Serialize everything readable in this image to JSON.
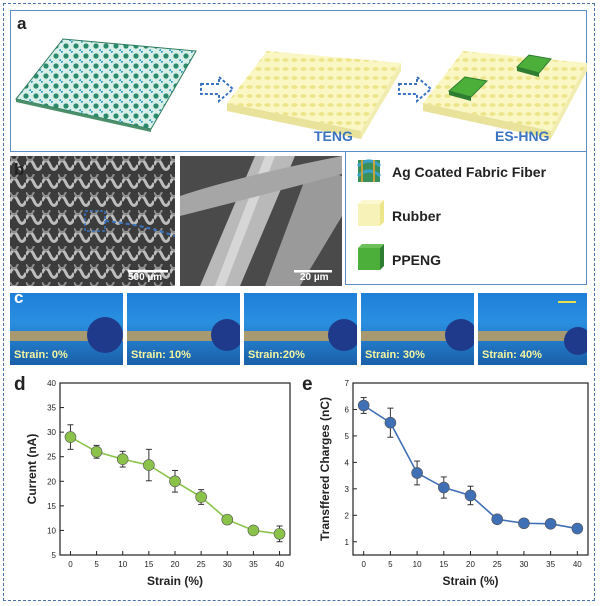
{
  "panel_a": {
    "label": "a",
    "teng_label": "TENG",
    "eshng_label": "ES-HNG"
  },
  "panel_b": {
    "label": "b",
    "scale_left": "500 µm",
    "scale_right": "20 µm"
  },
  "legend": {
    "items": [
      {
        "label": "Ag Coated Fabric Fiber",
        "color": "#3a8f5a"
      },
      {
        "label": "Rubber",
        "color": "#f7f3b8"
      },
      {
        "label": "PPENG",
        "color": "#4caf3a"
      }
    ]
  },
  "panel_c": {
    "label": "c",
    "photos": [
      "Strain: 0%",
      "Strain: 10%",
      "Strain:20%",
      "Strain: 30%",
      "Strain: 40%"
    ]
  },
  "chart_data": [
    {
      "type": "line",
      "panel": "d",
      "xlabel": "Strain (%)",
      "ylabel": "Current (nA)",
      "x": [
        0,
        5,
        10,
        15,
        20,
        25,
        30,
        35,
        40
      ],
      "y": [
        29,
        26,
        24.5,
        23.3,
        20,
        16.8,
        12.2,
        10,
        9.3
      ],
      "err": [
        2.5,
        1.3,
        1.6,
        3.2,
        2.2,
        1.5,
        0.6,
        0.5,
        1.6
      ],
      "xlim": [
        -2,
        42
      ],
      "ylim": [
        5,
        40
      ],
      "xticks": [
        0,
        5,
        10,
        15,
        20,
        25,
        30,
        35,
        40
      ],
      "yticks": [
        5,
        10,
        15,
        20,
        25,
        30,
        35,
        40
      ],
      "color": "#8bc34a"
    },
    {
      "type": "line",
      "panel": "e",
      "xlabel": "Strain (%)",
      "ylabel": "Transffered Charges (nC)",
      "x": [
        0,
        5,
        10,
        15,
        20,
        25,
        30,
        35,
        40
      ],
      "y": [
        6.15,
        5.5,
        3.6,
        3.05,
        2.75,
        1.85,
        1.7,
        1.68,
        1.5
      ],
      "err": [
        0.3,
        0.55,
        0.45,
        0.4,
        0.35,
        0.1,
        0.08,
        0.08,
        0.1
      ],
      "xlim": [
        -2,
        42
      ],
      "ylim": [
        0.5,
        7
      ],
      "xticks": [
        0,
        5,
        10,
        15,
        20,
        25,
        30,
        35,
        40
      ],
      "yticks": [
        1,
        2,
        3,
        4,
        5,
        6,
        7
      ],
      "color": "#3f6fb5"
    }
  ]
}
